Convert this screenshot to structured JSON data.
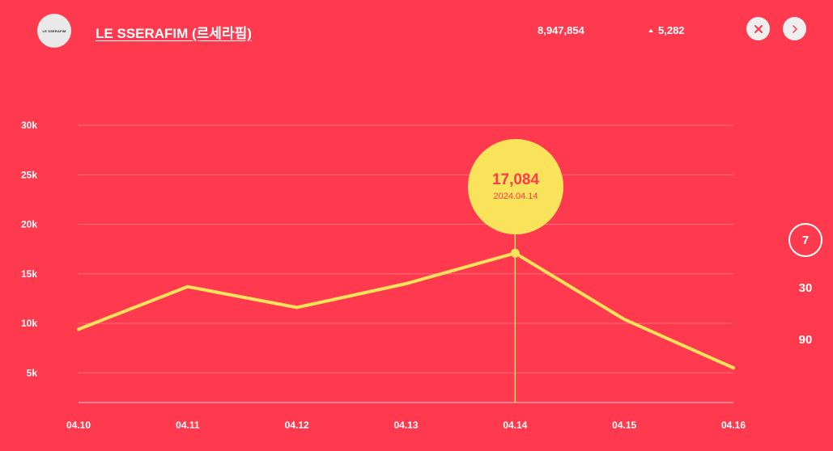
{
  "header": {
    "avatar_text": "LE SSERAFIM",
    "artist_name": "LE SSERAFIM (르세라핌)",
    "total_count": "8,947,854",
    "delta_count": "5,282"
  },
  "periods": [
    "7",
    "30",
    "90"
  ],
  "selected_period": "7",
  "tooltip": {
    "value": "17,084",
    "date": "2024.04.14"
  },
  "colors": {
    "background": "#ff3a4e",
    "line": "#f8e35a",
    "button": "#efefef"
  },
  "chart_data": {
    "type": "line",
    "x": [
      "04.10",
      "04.11",
      "04.12",
      "04.13",
      "04.14",
      "04.15",
      "04.16"
    ],
    "y_ticks": [
      "5k",
      "10k",
      "15k",
      "20k",
      "25k",
      "30k"
    ],
    "y_tick_values": [
      5000,
      10000,
      15000,
      20000,
      25000,
      30000
    ],
    "ylim": [
      2000,
      30000
    ],
    "series": [
      {
        "values": [
          9400,
          13700,
          11600,
          14000,
          17084,
          10400,
          5500
        ]
      }
    ],
    "highlight_index": 4,
    "grid": true
  }
}
